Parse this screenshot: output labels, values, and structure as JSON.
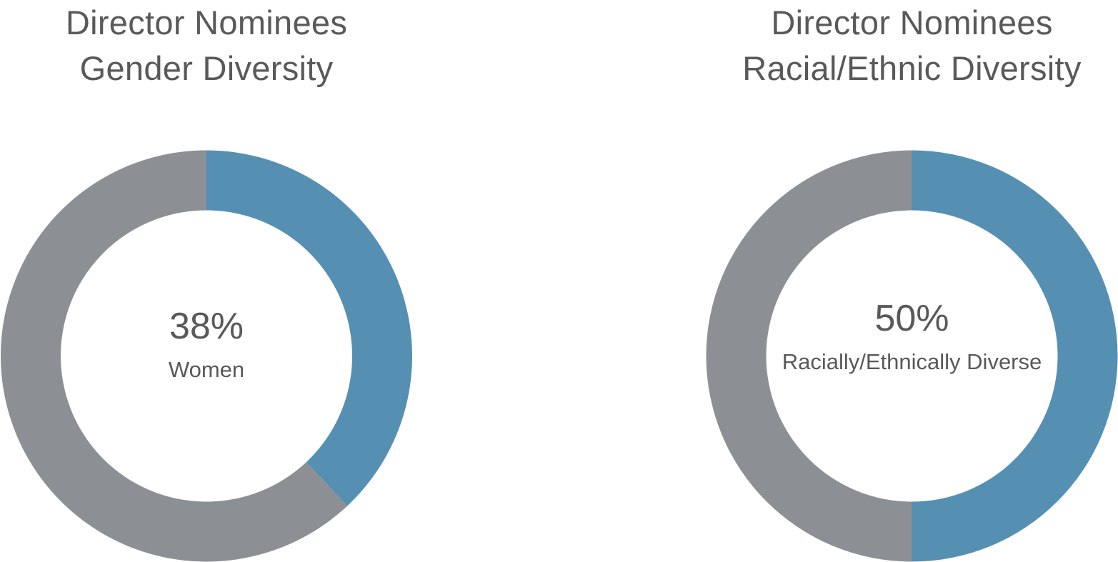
{
  "colors": {
    "highlight": "#5590b3",
    "remainder": "#8c9094",
    "text": "#595959",
    "background": "#ffffff"
  },
  "chart_data": [
    {
      "type": "pie",
      "variant": "donut",
      "title_lines": [
        "Director Nominees",
        "Gender Diversity"
      ],
      "value_label": "38%",
      "caption": "Women",
      "slices": [
        {
          "label": "Women",
          "value": 38,
          "color": "#5590b3"
        },
        {
          "label": "",
          "value": 62,
          "color": "#8c9094"
        }
      ],
      "legend": "none"
    },
    {
      "type": "pie",
      "variant": "donut",
      "title_lines": [
        "Director Nominees",
        "Racial/Ethnic Diversity"
      ],
      "value_label": "50%",
      "caption": "Racially/Ethnically Diverse",
      "slices": [
        {
          "label": "Racially/Ethnically Diverse",
          "value": 50,
          "color": "#5590b3"
        },
        {
          "label": "",
          "value": 50,
          "color": "#8c9094"
        }
      ],
      "legend": "none"
    }
  ]
}
